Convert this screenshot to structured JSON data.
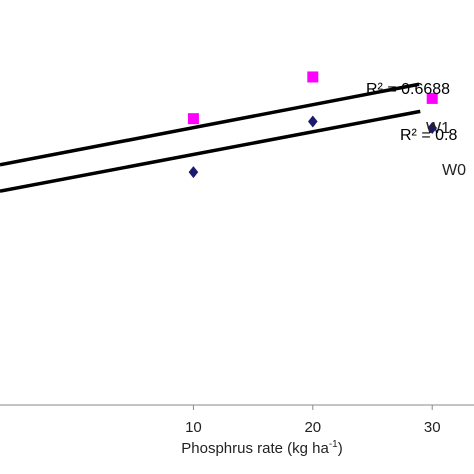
{
  "chart_data": {
    "type": "scatter",
    "xlabel": "Phosphrus rate (kg ha",
    "xlabel_sup": "-1",
    "xlabel_close": ")",
    "x_ticks": [
      "10",
      "20",
      "30"
    ],
    "xlim": [
      -6.2,
      33.5
    ],
    "ylim": [
      0,
      1
    ],
    "series": [
      {
        "name": "W1",
        "marker": "square",
        "color": "#ff00ff",
        "x": [
          10,
          20,
          30
        ],
        "y": [
          0.707,
          0.81,
          0.757
        ],
        "trendline": [
          [
            -6.2,
            0.593
          ],
          [
            28.9,
            0.792
          ]
        ],
        "r2_label": "R² = 0.6688"
      },
      {
        "name": "W0",
        "marker": "diamond",
        "color": "#1a1a6e",
        "x": [
          10,
          20,
          30
        ],
        "y": [
          0.575,
          0.7,
          0.684
        ],
        "trendline": [
          [
            -6.2,
            0.528
          ],
          [
            29.0,
            0.725
          ]
        ],
        "r2_label": "R² = 0.8"
      }
    ],
    "trendline_color": "#000000"
  }
}
